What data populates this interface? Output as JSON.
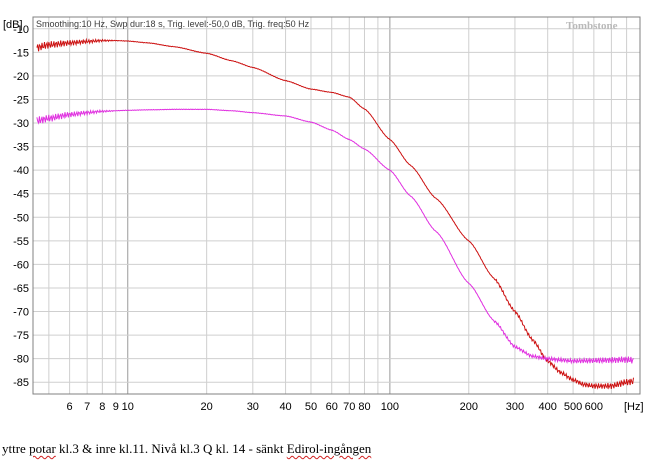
{
  "chart_data": {
    "type": "line",
    "title": "",
    "xlabel": "",
    "ylabel": "",
    "x_unit": "[Hz]",
    "y_unit": "[dB]",
    "x_scale": "log",
    "xlim": [
      4.35,
      900
    ],
    "ylim": [
      -87.5,
      -7.5
    ],
    "grid": true,
    "info_line": "Smoothing:10 Hz, Swp dur:18 s, Trig. level:-50,0 dB, Trig. freq:50 Hz",
    "watermark": "Tombstone",
    "x_tick_labels": [
      "6",
      "7",
      "8",
      "9",
      "10",
      "20",
      "30",
      "40",
      "50",
      "60",
      "70",
      "80",
      "100",
      "200",
      "300",
      "400",
      "500",
      "600"
    ],
    "y_tick_labels": [
      "-10",
      "-15",
      "-20",
      "-25",
      "-30",
      "-35",
      "-40",
      "-45",
      "-50",
      "-55",
      "-60",
      "-65",
      "-70",
      "-75",
      "-80",
      "-85"
    ],
    "series": [
      {
        "color": "#cc1010",
        "x": [
          4.5,
          5,
          6,
          7,
          8,
          9,
          10,
          12,
          15,
          20,
          25,
          30,
          40,
          50,
          60,
          70,
          80,
          100,
          120,
          150,
          200,
          250,
          300,
          350,
          400,
          450,
          500,
          550,
          600,
          700,
          800,
          850
        ],
        "y": [
          -14,
          -13.4,
          -13,
          -12.7,
          -12.5,
          -12.5,
          -12.6,
          -13,
          -13.8,
          -15.2,
          -16.8,
          -18.2,
          -21,
          -22.8,
          -23.5,
          -24.5,
          -27,
          -33.5,
          -39,
          -46,
          -55,
          -63,
          -70,
          -76,
          -80.5,
          -83,
          -84.5,
          -85.5,
          -85.8,
          -85.8,
          -85,
          -84.8
        ]
      },
      {
        "color": "#e030e0",
        "x": [
          4.5,
          5,
          6,
          7,
          8,
          10,
          12,
          15,
          20,
          25,
          30,
          40,
          50,
          60,
          70,
          80,
          100,
          120,
          150,
          200,
          250,
          300,
          350,
          400,
          450,
          500,
          600,
          700,
          800,
          850
        ],
        "y": [
          -29.5,
          -29,
          -28.2,
          -27.8,
          -27.5,
          -27.3,
          -27.2,
          -27.1,
          -27.1,
          -27.4,
          -27.8,
          -28.5,
          -29.8,
          -31.5,
          -33.5,
          -35.5,
          -40,
          -45.5,
          -53,
          -64,
          -72,
          -77.5,
          -79.5,
          -80,
          -80.3,
          -80.5,
          -80.4,
          -80.3,
          -80.2,
          -80.4
        ]
      }
    ]
  },
  "caption": {
    "prefix": "yttre ",
    "word1": "potar",
    "middle": " kl.3 & inre kl.11. Nivå kl.3  Q kl. 14 - sänkt ",
    "word2": "Edirol-ingången"
  }
}
